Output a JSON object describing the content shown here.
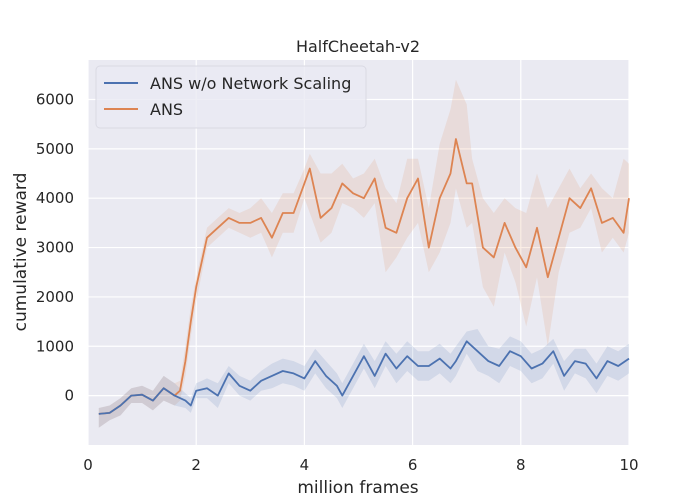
{
  "chart_data": {
    "type": "line",
    "title": "HalfCheetah-v2",
    "xlabel": "million frames",
    "ylabel": "cumulative reward",
    "xlim": [
      0,
      10
    ],
    "ylim": [
      -1000,
      6800
    ],
    "xticks": [
      0,
      2,
      4,
      6,
      8,
      10
    ],
    "yticks": [
      0,
      1000,
      2000,
      3000,
      4000,
      5000,
      6000
    ],
    "grid": true,
    "legend_position": "top-left",
    "series": [
      {
        "name": "ANS w/o Network Scaling",
        "color": "#4c72b0",
        "x": [
          0.2,
          0.4,
          0.6,
          0.8,
          1.0,
          1.2,
          1.4,
          1.6,
          1.8,
          1.9,
          2.0,
          2.2,
          2.4,
          2.6,
          2.8,
          3.0,
          3.2,
          3.4,
          3.6,
          3.8,
          4.0,
          4.2,
          4.4,
          4.6,
          4.7,
          4.9,
          5.1,
          5.3,
          5.5,
          5.7,
          5.9,
          6.1,
          6.3,
          6.5,
          6.7,
          6.8,
          7.0,
          7.2,
          7.4,
          7.6,
          7.8,
          8.0,
          8.2,
          8.4,
          8.6,
          8.8,
          9.0,
          9.2,
          9.4,
          9.6,
          9.8,
          10.0
        ],
        "y": [
          -370,
          -350,
          -200,
          0,
          20,
          -100,
          150,
          0,
          -100,
          -200,
          100,
          150,
          0,
          450,
          200,
          100,
          300,
          400,
          500,
          450,
          350,
          700,
          400,
          200,
          0,
          400,
          800,
          400,
          850,
          550,
          800,
          600,
          600,
          750,
          550,
          700,
          1100,
          900,
          700,
          600,
          900,
          800,
          550,
          650,
          900,
          400,
          700,
          650,
          350,
          700,
          600,
          750
        ],
        "band_upper": [
          -250,
          -200,
          -50,
          150,
          200,
          100,
          400,
          250,
          50,
          -50,
          250,
          350,
          250,
          600,
          400,
          300,
          500,
          650,
          750,
          700,
          600,
          950,
          700,
          450,
          250,
          650,
          1050,
          700,
          1100,
          850,
          1100,
          900,
          900,
          1050,
          850,
          1000,
          1300,
          1350,
          1000,
          950,
          1200,
          1100,
          850,
          950,
          1150,
          700,
          950,
          950,
          650,
          1000,
          900,
          1050
        ],
        "band_lower": [
          -650,
          -500,
          -400,
          -150,
          -150,
          -300,
          -100,
          -200,
          -250,
          -350,
          -50,
          -50,
          -250,
          250,
          0,
          -100,
          100,
          150,
          250,
          200,
          100,
          450,
          150,
          -50,
          -250,
          150,
          550,
          150,
          600,
          250,
          500,
          300,
          300,
          450,
          250,
          400,
          850,
          500,
          400,
          250,
          600,
          500,
          250,
          350,
          650,
          100,
          450,
          350,
          50,
          400,
          300,
          450
        ]
      },
      {
        "name": "ANS",
        "color": "#dd8452",
        "x": [
          0.2,
          0.4,
          0.6,
          0.8,
          1.0,
          1.2,
          1.4,
          1.6,
          1.7,
          1.8,
          1.9,
          2.0,
          2.2,
          2.4,
          2.6,
          2.8,
          3.0,
          3.2,
          3.4,
          3.6,
          3.8,
          4.0,
          4.1,
          4.3,
          4.5,
          4.7,
          4.9,
          5.1,
          5.3,
          5.5,
          5.7,
          5.9,
          6.1,
          6.3,
          6.5,
          6.7,
          6.8,
          7.0,
          7.1,
          7.3,
          7.5,
          7.7,
          7.9,
          8.1,
          8.3,
          8.5,
          8.7,
          8.9,
          9.1,
          9.3,
          9.5,
          9.7,
          9.9,
          10.0
        ],
        "y": [
          -370,
          -350,
          -200,
          0,
          20,
          -100,
          150,
          0,
          100,
          700,
          1500,
          2200,
          3200,
          3400,
          3600,
          3500,
          3500,
          3600,
          3200,
          3700,
          3700,
          4300,
          4600,
          3600,
          3800,
          4300,
          4100,
          4000,
          4400,
          3400,
          3300,
          4000,
          4400,
          3000,
          4000,
          4500,
          5200,
          4300,
          4300,
          3000,
          2800,
          3500,
          3000,
          2600,
          3400,
          2400,
          3200,
          4000,
          3800,
          4200,
          3500,
          3600,
          3300,
          4000
        ],
        "band_upper": [
          -250,
          -200,
          -50,
          150,
          200,
          100,
          400,
          250,
          300,
          1000,
          1800,
          2400,
          3400,
          3600,
          3800,
          3700,
          3800,
          4000,
          3700,
          4100,
          4100,
          4600,
          4900,
          4500,
          4500,
          4700,
          4400,
          4500,
          4800,
          4200,
          3900,
          4800,
          4800,
          3800,
          5100,
          5800,
          6400,
          5900,
          4800,
          4000,
          3700,
          4000,
          3800,
          3700,
          4500,
          3800,
          4200,
          4600,
          4200,
          4500,
          4200,
          4000,
          4800,
          4700
        ],
        "band_lower": [
          -650,
          -500,
          -400,
          -150,
          -150,
          -300,
          -100,
          -200,
          -100,
          400,
          1200,
          1900,
          3000,
          3200,
          3400,
          3300,
          3200,
          3300,
          2800,
          3300,
          3300,
          4000,
          3700,
          3100,
          3300,
          3900,
          3800,
          3600,
          3900,
          2500,
          2800,
          3200,
          3500,
          2500,
          2900,
          3500,
          4200,
          3400,
          3500,
          2200,
          1800,
          2900,
          2300,
          1400,
          2400,
          1000,
          2500,
          3300,
          3400,
          3800,
          2900,
          3200,
          2900,
          3300
        ]
      }
    ]
  }
}
